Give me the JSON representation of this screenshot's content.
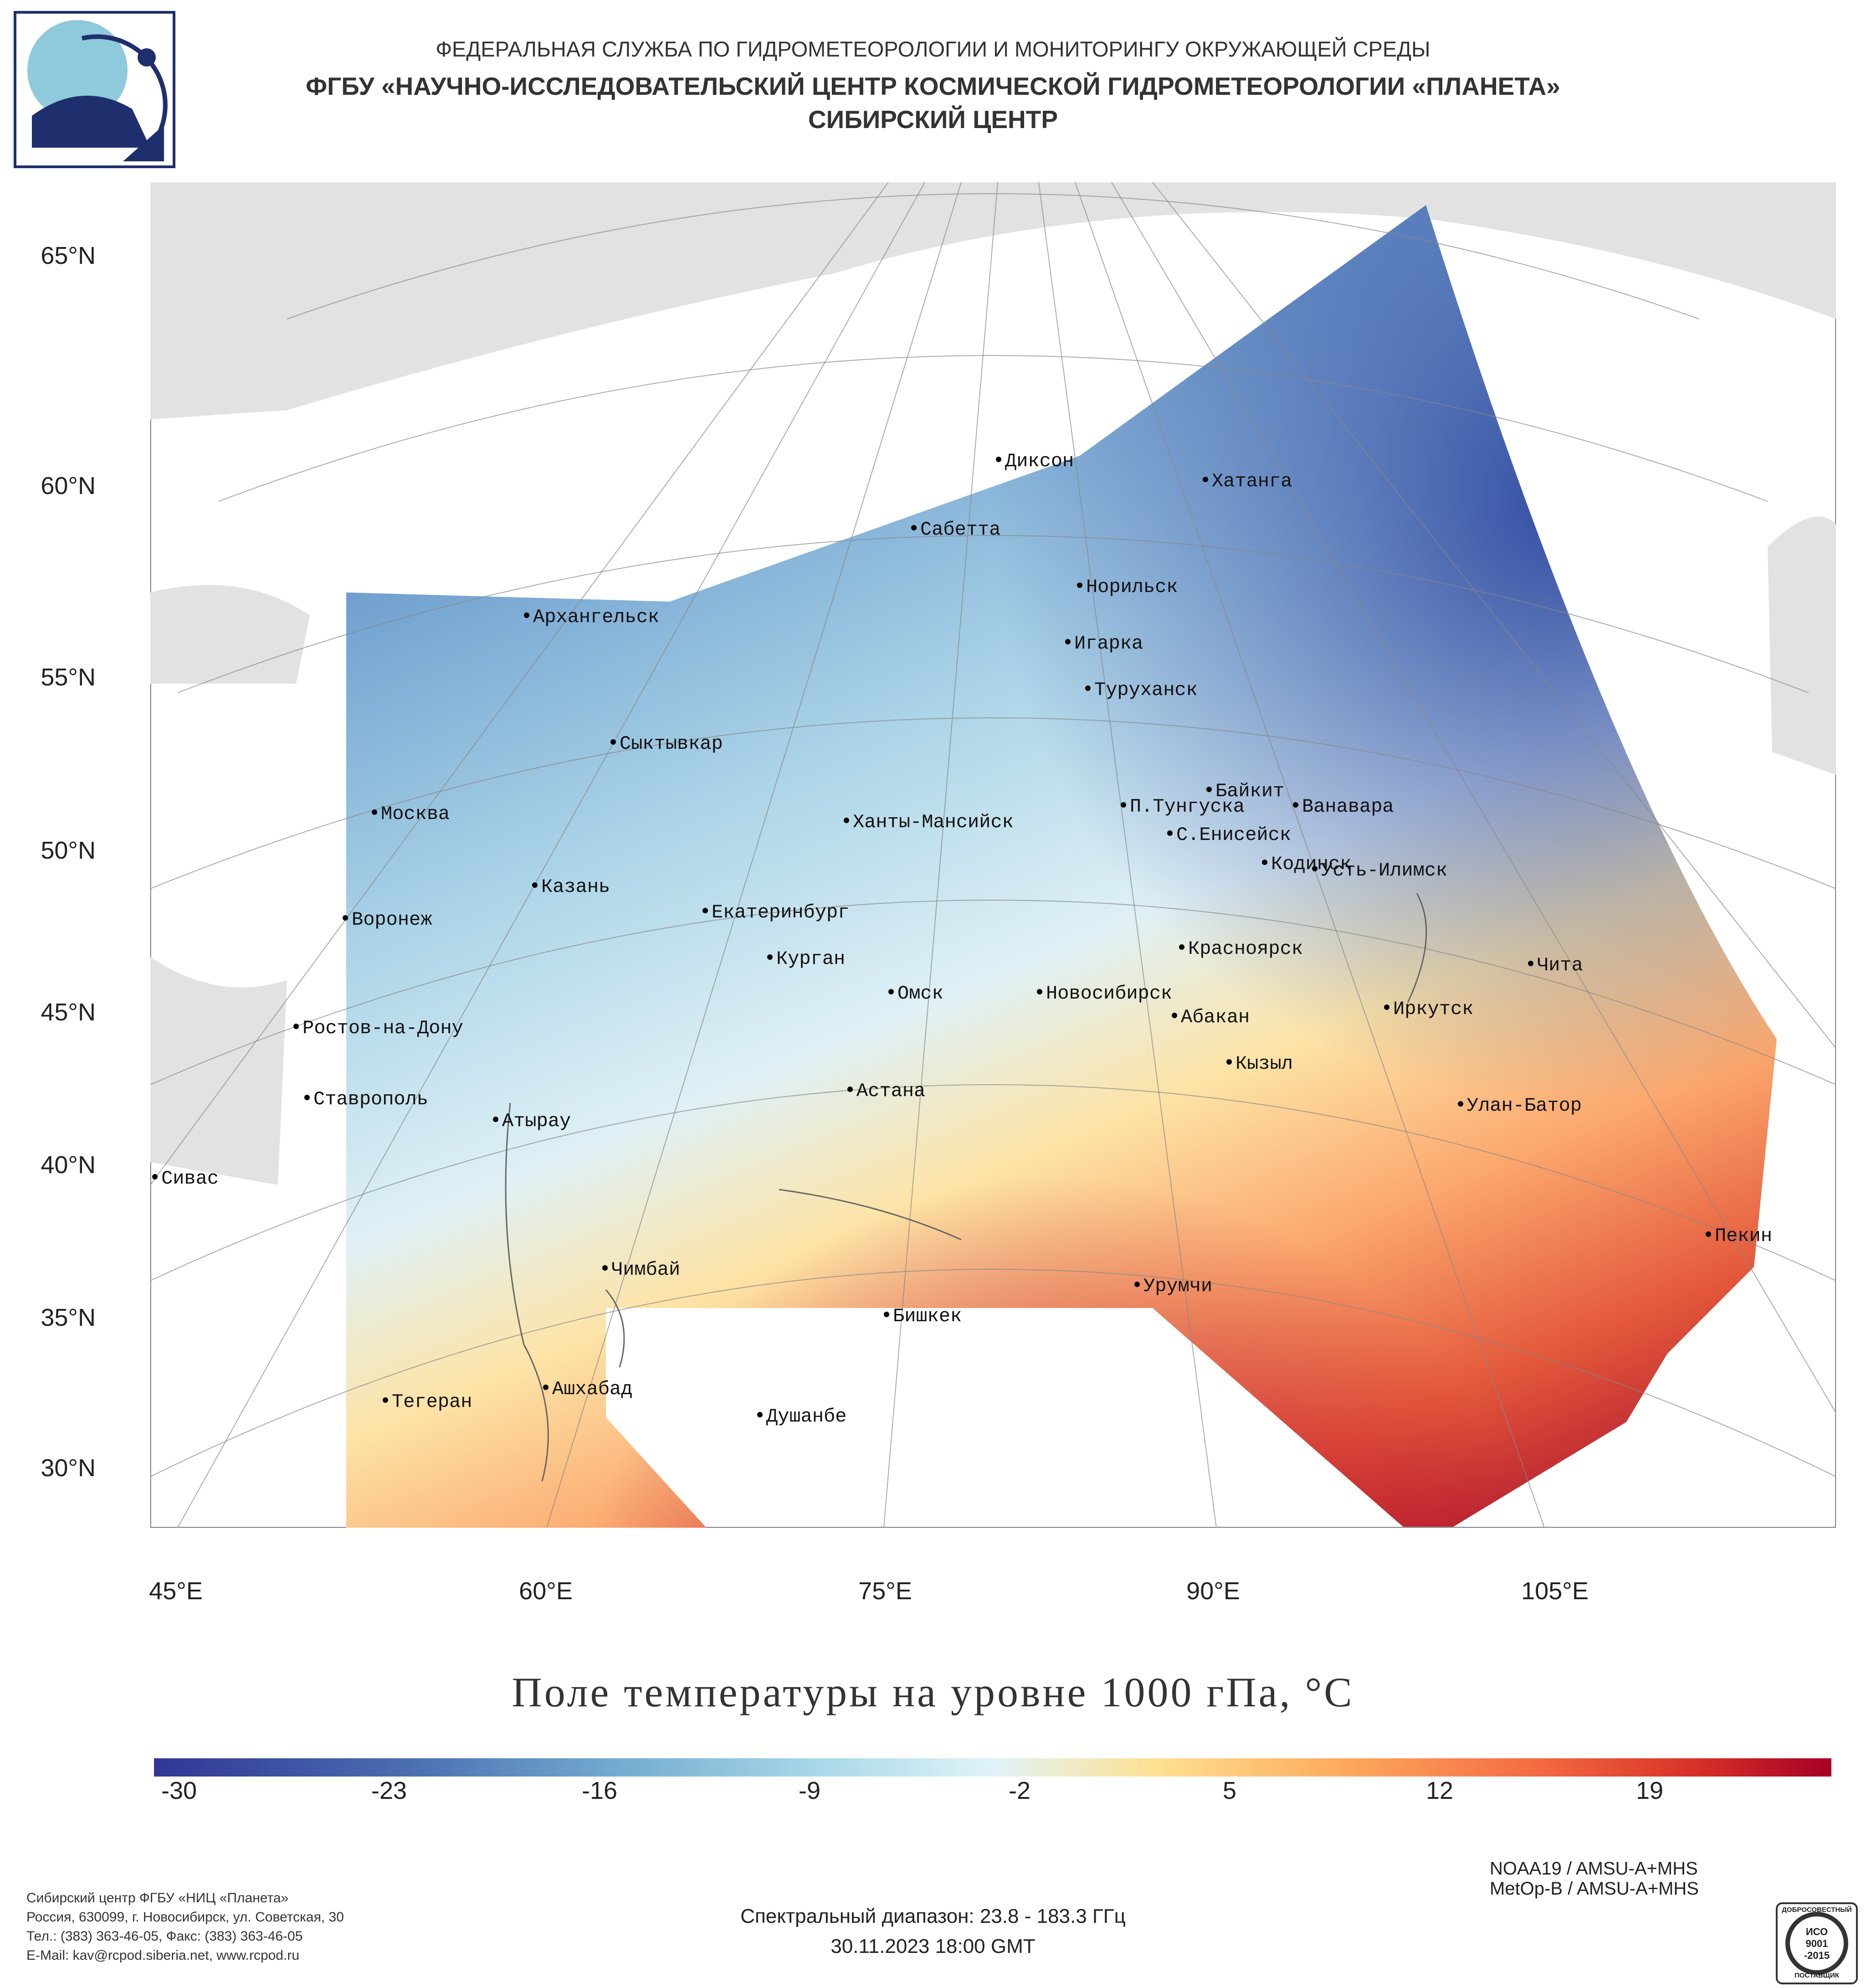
{
  "header": {
    "agency": "ФЕДЕРАЛЬНАЯ СЛУЖБА ПО ГИДРОМЕТЕОРОЛОГИИ И МОНИТОРИНГУ ОКРУЖАЮЩЕЙ СРЕДЫ",
    "institute": "ФГБУ «НАУЧНО-ИССЛЕДОВАТЕЛЬСКИЙ ЦЕНТР КОСМИЧЕСКОЙ ГИДРОМЕТЕОРОЛОГИИ «ПЛАНЕТА»",
    "center": "СИБИРСКИЙ ЦЕНТР"
  },
  "logo": {
    "icon": "planeta-logo-icon"
  },
  "map": {
    "latitude_labels": [
      "65°N",
      "60°N",
      "55°N",
      "50°N",
      "45°N",
      "40°N",
      "35°N",
      "30°N"
    ],
    "longitude_labels": [
      "45°E",
      "60°E",
      "75°E",
      "90°E",
      "105°E"
    ],
    "cities": [
      {
        "name": "Диксон"
      },
      {
        "name": "Хатанга"
      },
      {
        "name": "Сабетта"
      },
      {
        "name": "Норильск"
      },
      {
        "name": "Архангельск"
      },
      {
        "name": "Игарка"
      },
      {
        "name": "Туруханск"
      },
      {
        "name": "Сыктывкар"
      },
      {
        "name": "Байкит"
      },
      {
        "name": "Москва"
      },
      {
        "name": "П.Тунгуска"
      },
      {
        "name": "Ванавара"
      },
      {
        "name": "Ханты-Мансийск"
      },
      {
        "name": "С.Енисейск"
      },
      {
        "name": "Кодинск"
      },
      {
        "name": "Усть-Илимск"
      },
      {
        "name": "Казань"
      },
      {
        "name": "Воронеж"
      },
      {
        "name": "Екатеринбург"
      },
      {
        "name": "Красноярск"
      },
      {
        "name": "Курган"
      },
      {
        "name": "Чита"
      },
      {
        "name": "Омск"
      },
      {
        "name": "Новосибирск"
      },
      {
        "name": "Иркутск"
      },
      {
        "name": "Абакан"
      },
      {
        "name": "Ростов-на-Дону"
      },
      {
        "name": "Кызыл"
      },
      {
        "name": "Астана"
      },
      {
        "name": "Ставрополь"
      },
      {
        "name": "Улан-Батор"
      },
      {
        "name": "Атырау"
      },
      {
        "name": "Сивас"
      },
      {
        "name": "Пекин"
      },
      {
        "name": "Чимбай"
      },
      {
        "name": "Урумчи"
      },
      {
        "name": "Бишкек"
      },
      {
        "name": "Ашхабад"
      },
      {
        "name": "Тегеран"
      },
      {
        "name": "Душанбе"
      }
    ]
  },
  "product": {
    "title": "Поле температуры на уровне 1000 гПа, °C",
    "colorbar_ticks": [
      "-30",
      "-23",
      "-16",
      "-9",
      "-2",
      "5",
      "12",
      "19"
    ],
    "colorbar_range": [
      -30,
      23
    ],
    "colors": {
      "cold": "#313695",
      "neutral": "#e0f3f8",
      "warm": "#fdae61",
      "hot": "#a50026"
    }
  },
  "footer": {
    "org_lines": [
      "Сибирский центр ФГБУ «НИЦ «Планета»",
      "Россия, 630099, г. Новосибирск, ул. Советская, 30",
      "Тел.: (383) 363-46-05, Факс: (383) 363-46-05",
      "E-Mail: kav@rcpod.siberia.net, www.rcpod.ru"
    ],
    "satellite_lines": [
      "NOAA19 / AMSU-A+MHS",
      "MetOp-B / AMSU-A+MHS"
    ],
    "spectral_range": "Спектральный диапазон: 23.8 - 183.3 ГГц",
    "datetime": "30.11.2023 18:00 GMT",
    "cert_badge": {
      "line1": "ДОБРОСОВЕСТНЫЙ",
      "line2": "ИСО",
      "line3": "9001",
      "line4": "-2015",
      "line5": "ПОСТАВЩИК"
    }
  }
}
